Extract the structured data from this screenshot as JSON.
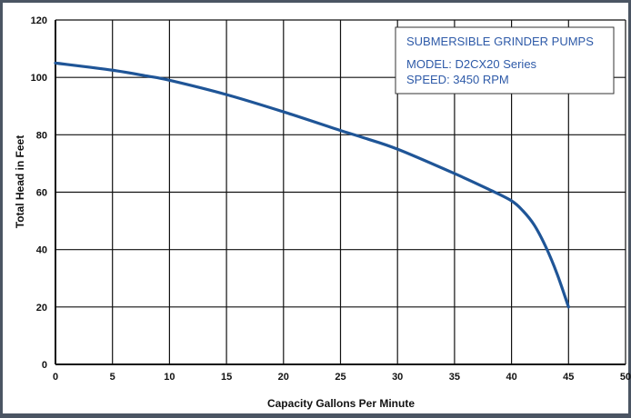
{
  "chart_data": {
    "type": "line",
    "xlabel": "Capacity Gallons Per Minute",
    "ylabel": "Total Head in Feet",
    "xlim": [
      0,
      50
    ],
    "ylim": [
      0,
      120
    ],
    "x_ticks": [
      0,
      5,
      10,
      15,
      20,
      25,
      30,
      35,
      40,
      45,
      50
    ],
    "y_ticks": [
      0,
      20,
      40,
      60,
      80,
      100,
      120
    ],
    "grid": true,
    "legend_box": {
      "title": "SUBMERSIBLE GRINDER PUMPS",
      "model": "MODEL: D2CX20 Series",
      "speed": "SPEED: 3450 RPM",
      "placement": "top-right"
    },
    "series": [
      {
        "color": "#1f5597",
        "x": [
          0,
          5,
          8,
          10,
          15,
          20,
          25,
          27,
          30,
          35,
          38,
          40,
          41,
          42,
          43,
          44,
          45
        ],
        "y": [
          105,
          102.5,
          100.5,
          99,
          94,
          88,
          81.5,
          79,
          75,
          66.5,
          61,
          57,
          53.5,
          48.5,
          41,
          31.5,
          20
        ]
      }
    ]
  }
}
